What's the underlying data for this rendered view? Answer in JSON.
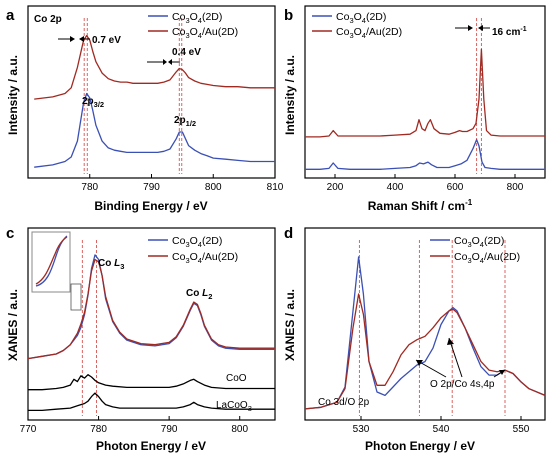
{
  "chart_data": [
    {
      "panel": "a",
      "type": "line",
      "title": "Co 2p",
      "xlabel": "Binding Energy / eV",
      "ylabel": "Intensity / a.u.",
      "xlim": [
        770,
        810
      ],
      "xticks": [
        780,
        790,
        800,
        810
      ],
      "series": [
        {
          "name": "Co3O4(2D)",
          "color": "#3b50b5",
          "offset": 0,
          "x": [
            771,
            774,
            776,
            777,
            778,
            779,
            779.5,
            780,
            780.5,
            781,
            782,
            783,
            784,
            785,
            786,
            787,
            788,
            789,
            790,
            791,
            792,
            793,
            794,
            794.5,
            795,
            795.5,
            796,
            797,
            798,
            799,
            800,
            802,
            804,
            806,
            808,
            810
          ],
          "y": [
            0.05,
            0.07,
            0.1,
            0.14,
            0.28,
            0.62,
            0.7,
            0.66,
            0.55,
            0.42,
            0.28,
            0.22,
            0.2,
            0.19,
            0.18,
            0.18,
            0.18,
            0.18,
            0.18,
            0.18,
            0.19,
            0.21,
            0.3,
            0.36,
            0.36,
            0.3,
            0.24,
            0.2,
            0.17,
            0.15,
            0.13,
            0.12,
            0.11,
            0.1,
            0.1,
            0.1
          ]
        },
        {
          "name": "Co3O4/Au(2D)",
          "color": "#a02a22",
          "offset": 0.55,
          "x": [
            771,
            774,
            776,
            777,
            778,
            779,
            779.5,
            780,
            780.5,
            781,
            782,
            783,
            784,
            785,
            786,
            787,
            788,
            789,
            790,
            791,
            792,
            793,
            794,
            794.5,
            795,
            795.5,
            796,
            797,
            798,
            799,
            800,
            802,
            804,
            806,
            808,
            810
          ],
          "y": [
            0.1,
            0.12,
            0.15,
            0.2,
            0.38,
            0.62,
            0.66,
            0.62,
            0.52,
            0.43,
            0.33,
            0.28,
            0.26,
            0.25,
            0.25,
            0.24,
            0.24,
            0.24,
            0.24,
            0.24,
            0.25,
            0.27,
            0.34,
            0.37,
            0.36,
            0.33,
            0.29,
            0.26,
            0.24,
            0.23,
            0.22,
            0.21,
            0.21,
            0.2,
            0.2,
            0.2
          ]
        }
      ],
      "annotations": [
        "0.7 eV",
        "0.4 eV",
        "2p3/2",
        "2p1/2"
      ]
    },
    {
      "panel": "b",
      "type": "line",
      "xlabel": "Raman Shift / cm-1",
      "ylabel": "Intensity / a.u.",
      "xlim": [
        100,
        900
      ],
      "xticks": [
        200,
        400,
        600,
        800
      ],
      "series": [
        {
          "name": "Co3O4(2D)",
          "color": "#3b50b5",
          "offset": 0,
          "x": [
            100,
            150,
            180,
            194,
            210,
            250,
            300,
            350,
            400,
            450,
            470,
            482,
            495,
            510,
            522,
            540,
            580,
            600,
            620,
            640,
            660,
            672,
            680,
            690,
            700,
            720,
            750,
            800,
            850,
            900
          ],
          "y": [
            0.02,
            0.02,
            0.03,
            0.09,
            0.03,
            0.02,
            0.02,
            0.02,
            0.03,
            0.04,
            0.06,
            0.09,
            0.08,
            0.1,
            0.07,
            0.04,
            0.04,
            0.06,
            0.08,
            0.12,
            0.25,
            0.35,
            0.28,
            0.1,
            0.04,
            0.03,
            0.02,
            0.02,
            0.02,
            0.02
          ]
        },
        {
          "name": "Co3O4/Au(2D)",
          "color": "#a02a22",
          "offset": 0.35,
          "x": [
            100,
            150,
            180,
            194,
            210,
            250,
            300,
            350,
            400,
            450,
            470,
            480,
            490,
            500,
            510,
            518,
            530,
            550,
            580,
            600,
            615,
            625,
            640,
            660,
            670,
            680,
            688,
            696,
            705,
            720,
            750,
            800,
            850,
            900
          ],
          "y": [
            0.03,
            0.03,
            0.04,
            0.1,
            0.04,
            0.04,
            0.04,
            0.04,
            0.05,
            0.06,
            0.1,
            0.22,
            0.12,
            0.1,
            0.18,
            0.22,
            0.12,
            0.07,
            0.06,
            0.08,
            0.1,
            0.09,
            0.09,
            0.12,
            0.18,
            0.45,
            1.0,
            0.45,
            0.1,
            0.05,
            0.04,
            0.04,
            0.04,
            0.04
          ]
        }
      ],
      "annotations": [
        "16 cm-1"
      ]
    },
    {
      "panel": "c",
      "type": "line",
      "xlabel": "Photon Energy / eV",
      "ylabel": "XANES / a.u.",
      "xlim": [
        770,
        805
      ],
      "xticks": [
        770,
        780,
        790,
        800
      ],
      "series": [
        {
          "name": "Co3O4(2D)",
          "color": "#3b50b5",
          "offset": 0.45,
          "x": [
            770,
            772,
            774,
            775,
            776,
            777,
            777.5,
            778,
            778.5,
            779,
            779.5,
            780,
            780.5,
            781,
            782,
            783,
            784,
            786,
            788,
            790,
            791,
            792,
            793,
            793.5,
            794,
            794.5,
            795,
            796,
            797,
            798,
            800,
            802,
            805
          ],
          "y": [
            0.0,
            0.02,
            0.04,
            0.07,
            0.12,
            0.2,
            0.27,
            0.38,
            0.55,
            0.78,
            0.9,
            0.86,
            0.72,
            0.52,
            0.32,
            0.22,
            0.16,
            0.12,
            0.11,
            0.13,
            0.18,
            0.28,
            0.42,
            0.48,
            0.46,
            0.38,
            0.28,
            0.16,
            0.11,
            0.09,
            0.08,
            0.08,
            0.08
          ]
        },
        {
          "name": "Co3O4/Au(2D)",
          "color": "#a02a22",
          "offset": 0.45,
          "x": [
            770,
            772,
            774,
            775,
            776,
            777,
            777.5,
            778,
            778.5,
            779,
            779.5,
            780,
            780.5,
            781,
            782,
            783,
            784,
            786,
            788,
            790,
            791,
            792,
            793,
            793.5,
            794,
            794.5,
            795,
            796,
            797,
            798,
            800,
            802,
            805
          ],
          "y": [
            0.0,
            0.02,
            0.04,
            0.07,
            0.12,
            0.22,
            0.3,
            0.4,
            0.56,
            0.76,
            0.86,
            0.84,
            0.72,
            0.54,
            0.33,
            0.23,
            0.17,
            0.13,
            0.12,
            0.14,
            0.19,
            0.29,
            0.43,
            0.49,
            0.47,
            0.39,
            0.29,
            0.17,
            0.12,
            0.1,
            0.09,
            0.09,
            0.09
          ]
        },
        {
          "name": "CoO",
          "color": "#000000",
          "offset": 0.18,
          "x": [
            770,
            772,
            774,
            775,
            776,
            776.5,
            777,
            777.5,
            778,
            778.5,
            779,
            779.5,
            780,
            781,
            782,
            784,
            786,
            788,
            790,
            791,
            792,
            793,
            793.5,
            794,
            795,
            796,
            798,
            800,
            805
          ],
          "y": [
            0.0,
            0.0,
            0.01,
            0.02,
            0.04,
            0.09,
            0.07,
            0.12,
            0.1,
            0.13,
            0.11,
            0.08,
            0.06,
            0.04,
            0.03,
            0.02,
            0.02,
            0.02,
            0.02,
            0.03,
            0.05,
            0.08,
            0.09,
            0.07,
            0.04,
            0.02,
            0.01,
            0.01,
            0.01
          ]
        },
        {
          "name": "LaCoO3",
          "color": "#000000",
          "offset": 0.0,
          "x": [
            770,
            772,
            774,
            776,
            777,
            778,
            778.5,
            779,
            779.5,
            780,
            780.5,
            781,
            782,
            783,
            784,
            786,
            788,
            790,
            791,
            792,
            793,
            793.5,
            794,
            795,
            796,
            798,
            800,
            805
          ],
          "y": [
            0.0,
            0.0,
            0.01,
            0.02,
            0.04,
            0.06,
            0.08,
            0.12,
            0.15,
            0.12,
            0.08,
            0.05,
            0.03,
            0.02,
            0.02,
            0.02,
            0.02,
            0.02,
            0.02,
            0.03,
            0.05,
            0.07,
            0.05,
            0.03,
            0.02,
            0.01,
            0.01,
            0.01
          ]
        }
      ],
      "annotations": [
        "Co L3",
        "Co L2",
        "CoO",
        "LaCoO3"
      ]
    },
    {
      "panel": "d",
      "type": "line",
      "xlabel": "Photon Energy / eV",
      "ylabel": "XANES / a.u.",
      "xlim": [
        523,
        553
      ],
      "xticks": [
        530,
        540,
        550
      ],
      "series": [
        {
          "name": "Co3O4(2D)",
          "color": "#3b50b5",
          "offset": 0,
          "x": [
            523,
            525,
            527,
            528,
            529,
            529.7,
            530.3,
            531,
            532,
            533,
            534,
            535,
            536,
            537,
            537.5,
            538,
            539,
            540,
            541,
            541.5,
            542,
            543,
            544,
            545,
            546,
            547,
            548,
            549,
            550,
            551,
            553
          ],
          "y": [
            0.02,
            0.03,
            0.06,
            0.15,
            0.6,
            0.92,
            0.7,
            0.3,
            0.12,
            0.1,
            0.15,
            0.2,
            0.24,
            0.28,
            0.29,
            0.3,
            0.38,
            0.52,
            0.6,
            0.62,
            0.6,
            0.5,
            0.38,
            0.27,
            0.22,
            0.22,
            0.25,
            0.23,
            0.18,
            0.14,
            0.1
          ]
        },
        {
          "name": "Co3O4/Au(2D)",
          "color": "#a02a22",
          "offset": 0,
          "x": [
            523,
            525,
            527,
            528,
            529,
            529.7,
            530.3,
            531,
            532,
            533,
            534,
            535,
            536,
            537,
            537.5,
            538,
            539,
            540,
            541,
            541.5,
            542,
            543,
            544,
            545,
            546,
            547,
            548,
            549,
            550,
            551,
            553
          ],
          "y": [
            0.02,
            0.03,
            0.06,
            0.14,
            0.5,
            0.7,
            0.58,
            0.3,
            0.16,
            0.16,
            0.24,
            0.34,
            0.4,
            0.43,
            0.44,
            0.45,
            0.5,
            0.56,
            0.6,
            0.61,
            0.59,
            0.5,
            0.4,
            0.3,
            0.25,
            0.24,
            0.25,
            0.23,
            0.18,
            0.14,
            0.1
          ]
        }
      ],
      "annotations": [
        "Co 3d/O 2p",
        "O 2p/Co 4s,4p"
      ]
    }
  ],
  "legend_labels": {
    "co3o4_main": "Co",
    "co3o4_sub1": "3",
    "co3o4_mid": "O",
    "co3o4_sub2": "4",
    "co3o4_tail": "(2D)",
    "au_tail": "/Au(2D)"
  },
  "panels": {
    "a": {
      "letter": "a",
      "title": "Co 2p",
      "ylabel": "Intensity / a.u.",
      "xlabel": "Binding Energy / eV",
      "split1": "0.7 eV",
      "split2": "0.4 eV",
      "peak1_main": "2p",
      "peak1_sub": "3/2",
      "peak2_main": "2p",
      "peak2_sub": "1/2",
      "ticks": [
        "780",
        "790",
        "800",
        "810"
      ]
    },
    "b": {
      "letter": "b",
      "ylabel": "Intensity / a.u.",
      "xlabel_main": "Raman Shift / cm",
      "xlabel_sup": "-1",
      "shift_main": "16 cm",
      "shift_sup": "-1",
      "ticks": [
        "200",
        "400",
        "600",
        "800"
      ]
    },
    "c": {
      "letter": "c",
      "ylabel": "XANES / a.u.",
      "xlabel": "Photon Energy / eV",
      "l3_main": "Co ",
      "l3_it": "L",
      "l3_sub": "3",
      "l2_main": "Co ",
      "l2_it": "L",
      "l2_sub": "2",
      "coo": "CoO",
      "lacoo_main": "LaCoO",
      "lacoo_sub": "3",
      "ticks": [
        "770",
        "780",
        "790",
        "800"
      ]
    },
    "d": {
      "letter": "d",
      "ylabel": "XANES / a.u.",
      "xlabel": "Photon Energy / eV",
      "anno1": "Co 3d/O 2p",
      "anno2": "O 2p/Co 4s,4p",
      "ticks": [
        "530",
        "540",
        "550"
      ]
    }
  }
}
